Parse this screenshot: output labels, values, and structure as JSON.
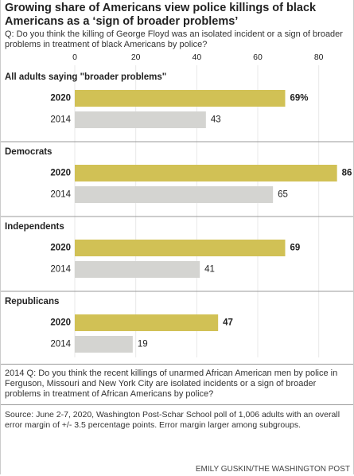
{
  "chart_data": {
    "type": "bar",
    "title": "Growing share of Americans view police killings of black Americans as a ‘sign of broader problems’",
    "subtitle": "Q: Do you think the killing of George Floyd was an isolated incident or a sign of broader problems in treatment of black Americans by police?",
    "categories": [
      "All adults saying \"broader problems\"",
      "Democrats",
      "Independents",
      "Republicans"
    ],
    "series": [
      {
        "name": "2020",
        "color": "#d1c155",
        "values": [
          69,
          86,
          69,
          47
        ],
        "value_labels": [
          "69%",
          "86",
          "69",
          "47"
        ]
      },
      {
        "name": "2014",
        "color": "#d4d4d1",
        "values": [
          43,
          65,
          41,
          19
        ]
      }
    ],
    "xlim": [
      0,
      90
    ],
    "xticks": [
      0,
      20,
      40,
      60,
      80
    ],
    "grid": true,
    "note": "2014 Q: Do you think the recent killings of unarmed African American men by police in Ferguson, Missouri and New York City are isolated incidents or a sign of broader problems in treatment of African Americans by police?",
    "source": "Source: June 2-7, 2020, Washington Post-Schar School poll of 1,006 adults with an overall error margin of +/- 3.5 percentage points. Error margin larger among subgroups.",
    "credit": "EMILY GUSKIN/THE WASHINGTON POST"
  }
}
